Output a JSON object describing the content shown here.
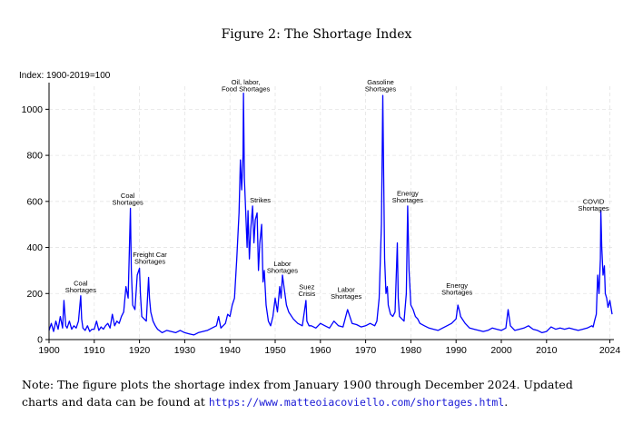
{
  "figure_title": "Figure 2: The Shortage Index",
  "unit_label": "Index: 1900-2019=100",
  "note": {
    "text_before_line": "Note: The figure plots the shortage index from January 1900 through December 2024. Updated",
    "text_before_link": "charts and data can be found at ",
    "link": "https://www.matteoiacoviello.com/shortages.html",
    "text_after_link": "."
  },
  "colors": {
    "series": "#0000ff",
    "grid": "#e4e4e4",
    "axis": "#000000",
    "annotation": "#000000"
  },
  "chart_data": {
    "type": "line",
    "title": "",
    "xlabel": "",
    "ylabel": "",
    "xlim": [
      1900,
      2024.9
    ],
    "ylim": [
      0,
      1100
    ],
    "xticks": [
      1900,
      1910,
      1920,
      1930,
      1940,
      1950,
      1960,
      1970,
      1980,
      1990,
      2000,
      2010,
      2024
    ],
    "xtick_labels": [
      "1900",
      "1910",
      "1920",
      "1930",
      "1940",
      "1950",
      "1960",
      "1970",
      "1980",
      "1990",
      "2000",
      "2010",
      "2024"
    ],
    "yticks": [
      0,
      200,
      400,
      600,
      800,
      1000
    ],
    "ytick_labels": [
      "0",
      "200",
      "400",
      "600",
      "800",
      "1000"
    ],
    "grid": true,
    "legend": false,
    "series": [
      {
        "x": [
          1900,
          1900.5,
          1901,
          1901.5,
          1902,
          1902.5,
          1903,
          1903.3,
          1903.7,
          1904,
          1904.5,
          1905,
          1905.5,
          1906,
          1906.5,
          1907,
          1907.2,
          1907.5,
          1908,
          1908.5,
          1909,
          1909.5,
          1910,
          1910.5,
          1911,
          1911.5,
          1912,
          1912.5,
          1913,
          1913.5,
          1914,
          1914.5,
          1915,
          1915.5,
          1916,
          1916.5,
          1917,
          1917.5,
          1918,
          1918.2,
          1918.5,
          1919,
          1919.5,
          1920,
          1920.2,
          1920.5,
          1921,
          1921.5,
          1922,
          1922.2,
          1922.5,
          1923,
          1923.5,
          1924,
          1925,
          1926,
          1927,
          1928,
          1929,
          1930,
          1931,
          1932,
          1933,
          1934,
          1935,
          1936,
          1937,
          1937.5,
          1938,
          1939,
          1939.5,
          1940,
          1940.5,
          1941,
          1941.5,
          1942,
          1942.3,
          1942.6,
          1942.9,
          1943,
          1943.2,
          1943.5,
          1943.8,
          1944,
          1944.3,
          1944.6,
          1945,
          1945.3,
          1945.6,
          1946,
          1946.3,
          1946.6,
          1947,
          1947.3,
          1947.6,
          1948,
          1948.5,
          1949,
          1949.5,
          1950,
          1950.5,
          1951,
          1951.3,
          1951.6,
          1952,
          1952.5,
          1953,
          1954,
          1955,
          1956,
          1956.8,
          1957,
          1957.5,
          1958,
          1959,
          1960,
          1961,
          1962,
          1963,
          1964,
          1965,
          1966,
          1966.5,
          1967,
          1968,
          1969,
          1970,
          1971,
          1972,
          1972.5,
          1973,
          1973.5,
          1973.8,
          1974,
          1974.2,
          1974.5,
          1974.8,
          1975,
          1975.5,
          1976,
          1976.5,
          1977,
          1977.2,
          1977.5,
          1978,
          1978.5,
          1979,
          1979.3,
          1979.6,
          1980,
          1980.5,
          1981,
          1981.5,
          1982,
          1983,
          1984,
          1985,
          1986,
          1987,
          1988,
          1989,
          1990,
          1990.4,
          1990.8,
          1991,
          1992,
          1993,
          1994,
          1995,
          1996,
          1997,
          1998,
          1999,
          2000,
          2001,
          2001.5,
          2002,
          2003,
          2004,
          2005,
          2006,
          2007,
          2008,
          2009,
          2010,
          2011,
          2012,
          2013,
          2014,
          2015,
          2016,
          2017,
          2018,
          2019,
          2020,
          2020.3,
          2020.6,
          2021,
          2021.3,
          2021.6,
          2021.9,
          2022,
          2022.2,
          2022.5,
          2022.8,
          2023,
          2023.3,
          2023.6,
          2024,
          2024.5
        ],
        "values": [
          40,
          70,
          35,
          80,
          45,
          100,
          50,
          170,
          60,
          50,
          80,
          45,
          60,
          50,
          80,
          190,
          90,
          50,
          40,
          60,
          35,
          45,
          45,
          80,
          40,
          55,
          45,
          60,
          70,
          50,
          110,
          60,
          80,
          70,
          100,
          120,
          230,
          180,
          570,
          300,
          150,
          130,
          280,
          310,
          200,
          100,
          90,
          80,
          270,
          180,
          120,
          80,
          60,
          45,
          30,
          40,
          35,
          30,
          40,
          30,
          25,
          20,
          30,
          35,
          40,
          50,
          60,
          100,
          50,
          70,
          110,
          100,
          150,
          180,
          350,
          550,
          780,
          650,
          800,
          1070,
          700,
          550,
          400,
          560,
          350,
          480,
          580,
          420,
          520,
          550,
          300,
          420,
          500,
          250,
          300,
          150,
          80,
          60,
          100,
          180,
          120,
          230,
          180,
          280,
          220,
          150,
          120,
          90,
          70,
          60,
          170,
          80,
          60,
          60,
          50,
          70,
          60,
          50,
          80,
          60,
          55,
          130,
          100,
          70,
          65,
          55,
          60,
          70,
          60,
          80,
          180,
          500,
          1060,
          700,
          350,
          200,
          230,
          150,
          110,
          100,
          120,
          420,
          180,
          100,
          90,
          80,
          200,
          580,
          300,
          150,
          130,
          100,
          90,
          70,
          60,
          50,
          45,
          40,
          50,
          60,
          70,
          90,
          150,
          120,
          100,
          70,
          50,
          45,
          40,
          35,
          40,
          50,
          45,
          40,
          50,
          130,
          60,
          40,
          45,
          50,
          60,
          45,
          40,
          30,
          35,
          55,
          45,
          50,
          45,
          50,
          45,
          40,
          45,
          50,
          60,
          55,
          80,
          110,
          280,
          200,
          350,
          560,
          400,
          280,
          320,
          200,
          180,
          140,
          170,
          110
        ]
      }
    ],
    "annotations": [
      {
        "lines": [
          "Coal",
          "Shortages"
        ],
        "x": 1907,
        "y": 205
      },
      {
        "lines": [
          "Coal",
          "Shortages"
        ],
        "x": 1917.4,
        "y": 585
      },
      {
        "lines": [
          "Freight Car",
          "Shortages"
        ],
        "x": 1922.3,
        "y": 330
      },
      {
        "lines": [
          "Oil, labor,",
          "Food Shortages"
        ],
        "x": 1943.5,
        "y": 1078
      },
      {
        "lines": [
          "Strikes"
        ],
        "x": 1946.7,
        "y": 595
      },
      {
        "lines": [
          "Labor",
          "Shortages"
        ],
        "x": 1951.6,
        "y": 290
      },
      {
        "lines": [
          "Suez",
          "Crisis"
        ],
        "x": 1957,
        "y": 190
      },
      {
        "lines": [
          "Labor",
          "Shortages"
        ],
        "x": 1965.7,
        "y": 178
      },
      {
        "lines": [
          "Gasoline",
          "Shortages"
        ],
        "x": 1973.3,
        "y": 1078
      },
      {
        "lines": [
          "Energy",
          "Shortages"
        ],
        "x": 1979.3,
        "y": 595
      },
      {
        "lines": [
          "Energy",
          "Shortages"
        ],
        "x": 1990.2,
        "y": 195
      },
      {
        "lines": [
          "COVID",
          "Shortages"
        ],
        "x": 2020.4,
        "y": 560
      }
    ]
  }
}
